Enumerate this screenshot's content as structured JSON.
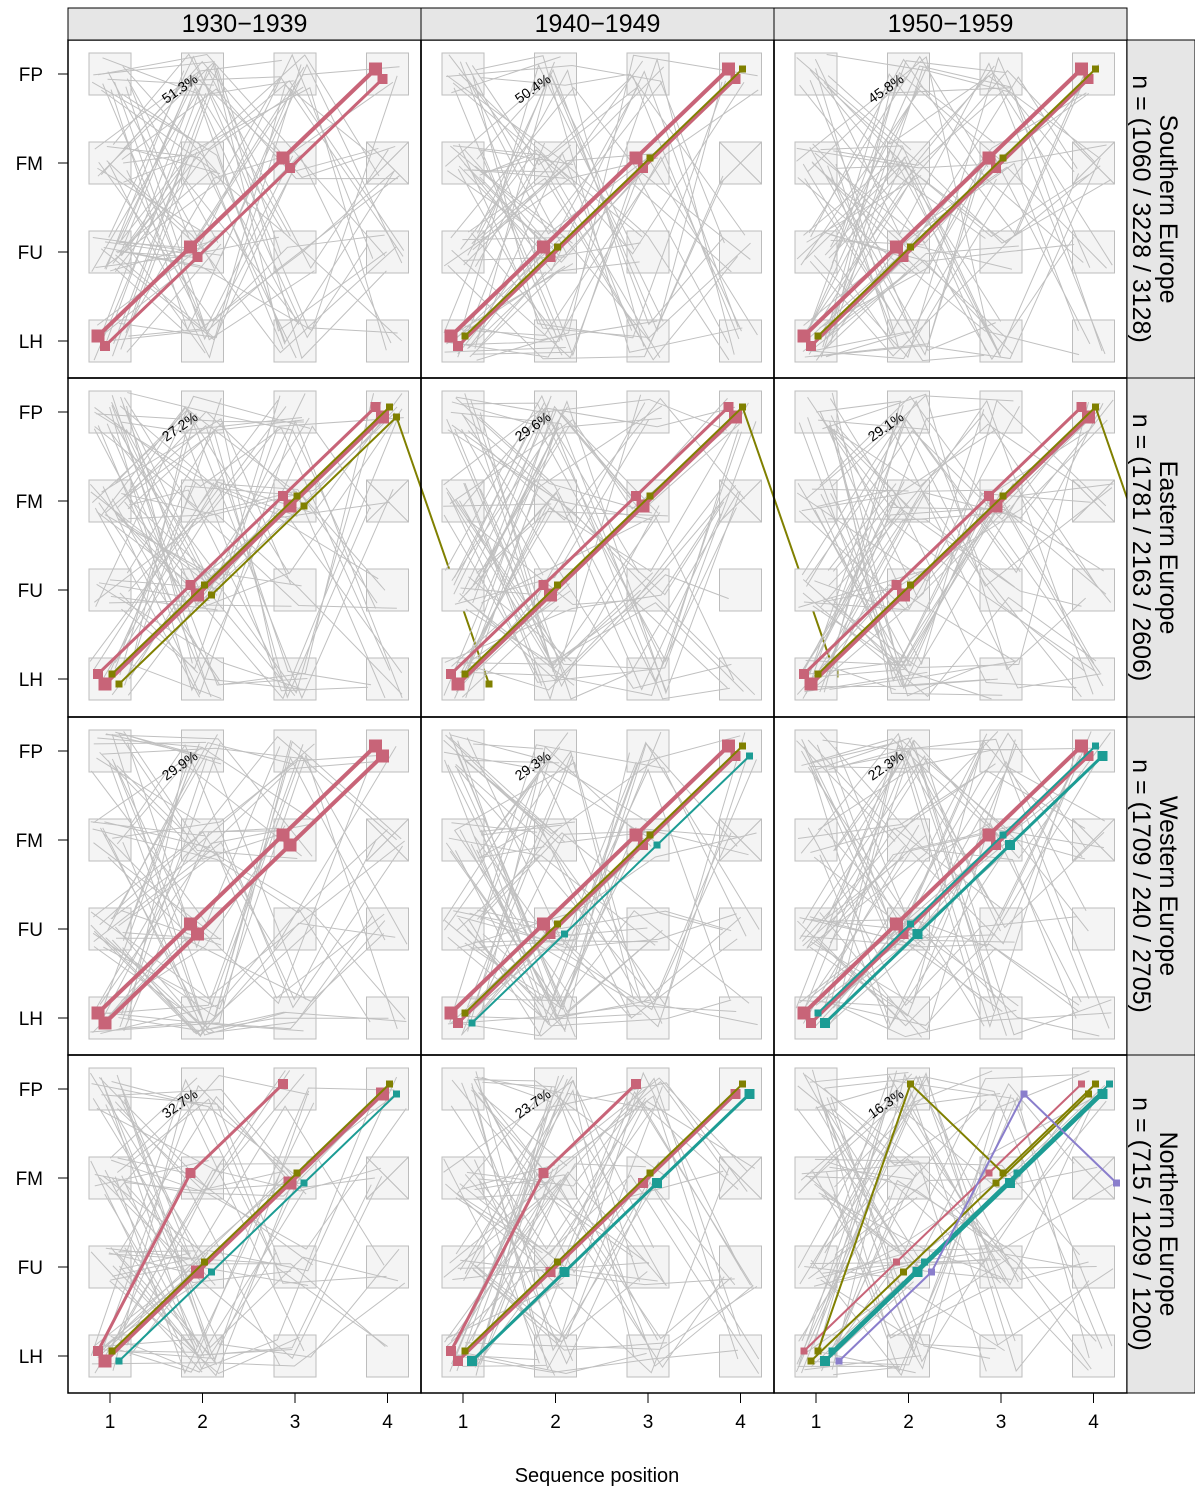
{
  "colors": {
    "state_box_fill": "#f4f4f4",
    "state_box_stroke": "#bdbdbd",
    "background_path": "#c0c0c0",
    "strip_fill": "#e6e6e6",
    "palette": [
      "#c86478",
      "#808000",
      "#1c9c94",
      "#8a7ecc"
    ]
  },
  "chart_data": {
    "type": "sequence-plot",
    "xlabel": "Sequence position",
    "x_ticks": [
      "1",
      "2",
      "3",
      "4"
    ],
    "y_states": [
      "LH",
      "FU",
      "FM",
      "FP"
    ],
    "columns": [
      "1930−1939",
      "1940−1949",
      "1950−1959"
    ],
    "rows": [
      {
        "label": "Southern Europe",
        "n": "n = (1060 / 3228 / 3128)",
        "panels": [
          {
            "pct": "51.3%",
            "paths": [
              {
                "color": 0,
                "weight": 3,
                "seq": [
                  "LH",
                  "FU",
                  "FM",
                  "FP"
                ]
              },
              {
                "color": 0,
                "weight": 2,
                "seq": [
                  "LH",
                  "FU",
                  "FM",
                  "FP"
                ]
              }
            ]
          },
          {
            "pct": "50.4%",
            "paths": [
              {
                "color": 0,
                "weight": 3,
                "seq": [
                  "LH",
                  "FU",
                  "FM",
                  "FP"
                ]
              },
              {
                "color": 0,
                "weight": 2,
                "seq": [
                  "LH",
                  "FU",
                  "FM",
                  "FP"
                ]
              },
              {
                "color": 1,
                "weight": 1,
                "seq": [
                  "LH",
                  "FU",
                  "FM",
                  "FP"
                ]
              }
            ]
          },
          {
            "pct": "45.8%",
            "paths": [
              {
                "color": 0,
                "weight": 3,
                "seq": [
                  "LH",
                  "FU",
                  "FM",
                  "FP"
                ]
              },
              {
                "color": 0,
                "weight": 2,
                "seq": [
                  "LH",
                  "FU",
                  "FM",
                  "FP"
                ]
              },
              {
                "color": 1,
                "weight": 1,
                "seq": [
                  "LH",
                  "FU",
                  "FM",
                  "FP"
                ]
              }
            ]
          }
        ]
      },
      {
        "label": "Eastern Europe",
        "n": "n = (1781 / 2163 / 2606)",
        "panels": [
          {
            "pct": "27.2%",
            "paths": [
              {
                "color": 0,
                "weight": 2,
                "seq": [
                  "LH",
                  "FU",
                  "FM",
                  "FP"
                ]
              },
              {
                "color": 0,
                "weight": 3,
                "seq": [
                  "LH",
                  "FU",
                  "FM",
                  "FP"
                ]
              },
              {
                "color": 1,
                "weight": 1,
                "seq": [
                  "LH",
                  "FU",
                  "FM",
                  "FP"
                ]
              },
              {
                "color": 1,
                "weight": 1,
                "seq": [
                  "LH",
                  "FU",
                  "FM",
                  "FP",
                  "LH"
                ]
              }
            ]
          },
          {
            "pct": "29.6%",
            "paths": [
              {
                "color": 0,
                "weight": 2,
                "seq": [
                  "LH",
                  "FU",
                  "FM",
                  "FP"
                ]
              },
              {
                "color": 0,
                "weight": 3,
                "seq": [
                  "LH",
                  "FU",
                  "FM",
                  "FP"
                ]
              },
              {
                "color": 1,
                "weight": 1,
                "seq": [
                  "LH",
                  "FU",
                  "FM",
                  "FP",
                  "LH"
                ]
              }
            ]
          },
          {
            "pct": "29.1%",
            "paths": [
              {
                "color": 0,
                "weight": 2,
                "seq": [
                  "LH",
                  "FU",
                  "FM",
                  "FP"
                ]
              },
              {
                "color": 0,
                "weight": 3,
                "seq": [
                  "LH",
                  "FU",
                  "FM",
                  "FP"
                ]
              },
              {
                "color": 1,
                "weight": 1,
                "seq": [
                  "LH",
                  "FU",
                  "FM",
                  "FP",
                  "LH"
                ]
              }
            ]
          }
        ]
      },
      {
        "label": "Western Europe",
        "n": "n = (1709 / 240 / 2705)",
        "panels": [
          {
            "pct": "29.9%",
            "paths": [
              {
                "color": 0,
                "weight": 3,
                "seq": [
                  "LH",
                  "FU",
                  "FM",
                  "FP"
                ]
              },
              {
                "color": 0,
                "weight": 3,
                "seq": [
                  "LH",
                  "FU",
                  "FM",
                  "FP"
                ]
              }
            ]
          },
          {
            "pct": "29.3%",
            "paths": [
              {
                "color": 0,
                "weight": 3,
                "seq": [
                  "LH",
                  "FU",
                  "FM",
                  "FP"
                ]
              },
              {
                "color": 0,
                "weight": 2,
                "seq": [
                  "LH",
                  "FU",
                  "FM",
                  "FP"
                ]
              },
              {
                "color": 1,
                "weight": 1,
                "seq": [
                  "LH",
                  "FU",
                  "FM",
                  "FP"
                ]
              },
              {
                "color": 2,
                "weight": 1,
                "seq": [
                  "LH",
                  "FU",
                  "FM",
                  "FP"
                ]
              }
            ]
          },
          {
            "pct": "22.3%",
            "paths": [
              {
                "color": 0,
                "weight": 3,
                "seq": [
                  "LH",
                  "FU",
                  "FM",
                  "FP"
                ]
              },
              {
                "color": 0,
                "weight": 2,
                "seq": [
                  "LH",
                  "FU",
                  "FM",
                  "FP"
                ]
              },
              {
                "color": 2,
                "weight": 1,
                "seq": [
                  "LH",
                  "FU",
                  "FM",
                  "FP"
                ]
              },
              {
                "color": 2,
                "weight": 2,
                "seq": [
                  "LH",
                  "FU",
                  "FM",
                  "FP"
                ]
              }
            ]
          }
        ]
      },
      {
        "label": "Northern Europe",
        "n": "n = (715 / 1209 / 1200)",
        "panels": [
          {
            "pct": "32.7%",
            "paths": [
              {
                "color": 0,
                "weight": 2,
                "seq": [
                  "LH",
                  "FM",
                  "FP"
                ]
              },
              {
                "color": 0,
                "weight": 3,
                "seq": [
                  "LH",
                  "FU",
                  "FM",
                  "FP"
                ]
              },
              {
                "color": 1,
                "weight": 1,
                "seq": [
                  "LH",
                  "FU",
                  "FM",
                  "FP"
                ]
              },
              {
                "color": 2,
                "weight": 1,
                "seq": [
                  "LH",
                  "FU",
                  "FM",
                  "FP"
                ]
              }
            ]
          },
          {
            "pct": "23.7%",
            "paths": [
              {
                "color": 0,
                "weight": 2,
                "seq": [
                  "LH",
                  "FM",
                  "FP"
                ]
              },
              {
                "color": 0,
                "weight": 2,
                "seq": [
                  "LH",
                  "FU",
                  "FM",
                  "FP"
                ]
              },
              {
                "color": 1,
                "weight": 1,
                "seq": [
                  "LH",
                  "FU",
                  "FM",
                  "FP"
                ]
              },
              {
                "color": 2,
                "weight": 2,
                "seq": [
                  "LH",
                  "FU",
                  "FM",
                  "FP"
                ]
              }
            ]
          },
          {
            "pct": "16.3%",
            "paths": [
              {
                "color": 0,
                "weight": 1,
                "seq": [
                  "LH",
                  "FU",
                  "FM",
                  "FP"
                ]
              },
              {
                "color": 1,
                "weight": 1,
                "seq": [
                  "LH",
                  "FU",
                  "FM",
                  "FP"
                ]
              },
              {
                "color": 1,
                "weight": 1,
                "seq": [
                  "LH",
                  "FP",
                  "FM",
                  "FP"
                ]
              },
              {
                "color": 2,
                "weight": 2,
                "seq": [
                  "LH",
                  "FU",
                  "FM",
                  "FP"
                ]
              },
              {
                "color": 2,
                "weight": 1,
                "seq": [
                  "LH",
                  "FU",
                  "FM",
                  "FP"
                ]
              },
              {
                "color": 3,
                "weight": 1,
                "seq": [
                  "LH",
                  "FU",
                  "FP",
                  "FM"
                ]
              }
            ]
          }
        ]
      }
    ]
  }
}
